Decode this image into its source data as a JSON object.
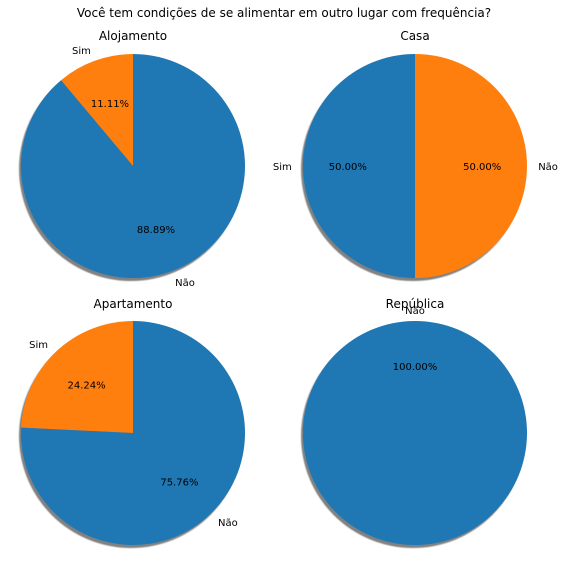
{
  "title": "Você tem condições de se alimentar em outro lugar com frequência?",
  "chart_data": [
    {
      "type": "pie",
      "title": "Alojamento",
      "slices": [
        {
          "label": "Sim",
          "value": 11.11,
          "pct_label": "11.11%",
          "color": "#ff7f0e"
        },
        {
          "label": "Não",
          "value": 88.89,
          "pct_label": "88.89%",
          "color": "#1f77b4"
        }
      ]
    },
    {
      "type": "pie",
      "title": "Casa",
      "slices": [
        {
          "label": "Não",
          "value": 50.0,
          "pct_label": "50.00%",
          "color": "#ff7f0e"
        },
        {
          "label": "Sim",
          "value": 50.0,
          "pct_label": "50.00%",
          "color": "#1f77b4"
        }
      ]
    },
    {
      "type": "pie",
      "title": "Apartamento",
      "slices": [
        {
          "label": "Sim",
          "value": 24.24,
          "pct_label": "24.24%",
          "color": "#ff7f0e"
        },
        {
          "label": "Não",
          "value": 75.76,
          "pct_label": "75.76%",
          "color": "#1f77b4"
        }
      ]
    },
    {
      "type": "pie",
      "title": "República",
      "slices": [
        {
          "label": "Não",
          "value": 100.0,
          "pct_label": "100.00%",
          "color": "#1f77b4"
        }
      ]
    }
  ]
}
